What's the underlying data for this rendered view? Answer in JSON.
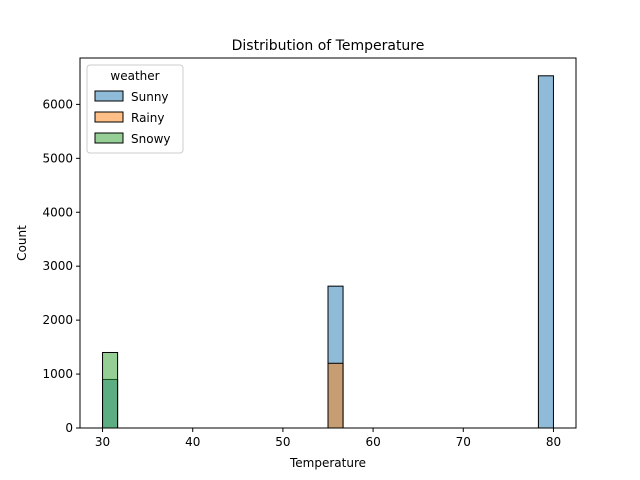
{
  "chart_data": {
    "type": "histogram",
    "title": "Distribution of Temperature",
    "xlabel": "Temperature",
    "ylabel": "Count",
    "xlim": [
      27.5,
      82.5
    ],
    "ylim": [
      0,
      6860
    ],
    "xticks": [
      30,
      40,
      50,
      60,
      70,
      80
    ],
    "yticks": [
      0,
      1000,
      2000,
      3000,
      4000,
      5000,
      6000
    ],
    "bin_width": 1.6667,
    "legend": {
      "title": "weather",
      "position": "upper-left",
      "entries": [
        "Sunny",
        "Rainy",
        "Snowy"
      ]
    },
    "series": [
      {
        "name": "Sunny",
        "color": "#1f77b4",
        "bins": [
          {
            "x0": 30,
            "x1": 31.67,
            "count": 900
          },
          {
            "x0": 55,
            "x1": 56.67,
            "count": 2630
          },
          {
            "x0": 78.33,
            "x1": 80,
            "count": 6530
          }
        ]
      },
      {
        "name": "Rainy",
        "color": "#ff7f0e",
        "bins": [
          {
            "x0": 55,
            "x1": 56.67,
            "count": 1200
          }
        ]
      },
      {
        "name": "Snowy",
        "color": "#2ca02c",
        "bins": [
          {
            "x0": 30,
            "x1": 31.67,
            "count": 1400
          }
        ]
      }
    ]
  }
}
